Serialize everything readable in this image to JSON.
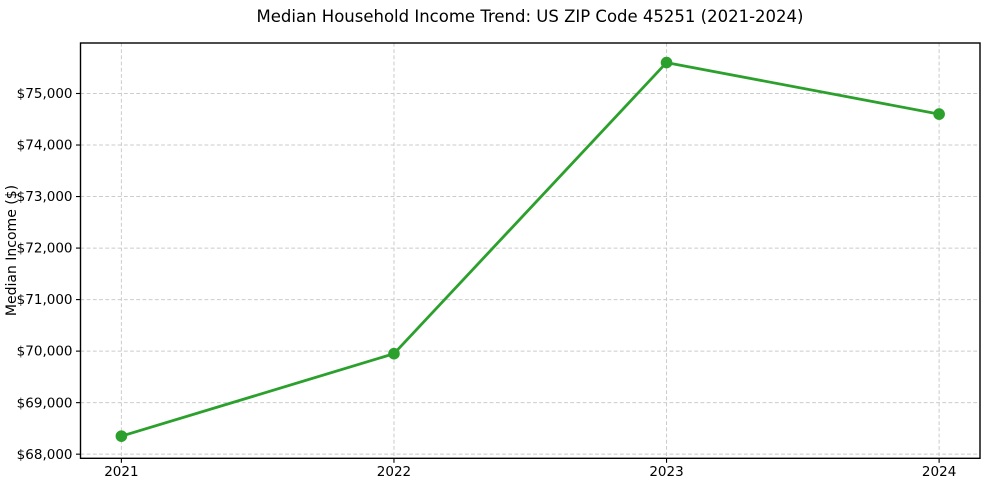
{
  "chart_data": {
    "type": "line",
    "title": "Median Household Income Trend: US ZIP Code 45251 (2021-2024)",
    "xlabel": "",
    "ylabel": "Median Income ($)",
    "categories": [
      "2021",
      "2022",
      "2023",
      "2024"
    ],
    "values": [
      68350,
      69950,
      75600,
      74600
    ],
    "line_color": "#2ca02c",
    "marker": "circle",
    "marker_color": "#2ca02c",
    "ytick_values": [
      68000,
      69000,
      70000,
      71000,
      72000,
      73000,
      74000,
      75000
    ],
    "ytick_labels": [
      "$68,000",
      "$69,000",
      "$70,000",
      "$71,000",
      "$72,000",
      "$73,000",
      "$74,000",
      "$75,000"
    ],
    "ylim": [
      67920,
      75980
    ],
    "xlim_index": [
      -0.15,
      3.15
    ],
    "grid": true,
    "grid_color": "#cbcbcb",
    "grid_style": "dashed",
    "legend": "none",
    "background": "#ffffff",
    "spine_color": "#000000",
    "text_color": "#000000"
  }
}
